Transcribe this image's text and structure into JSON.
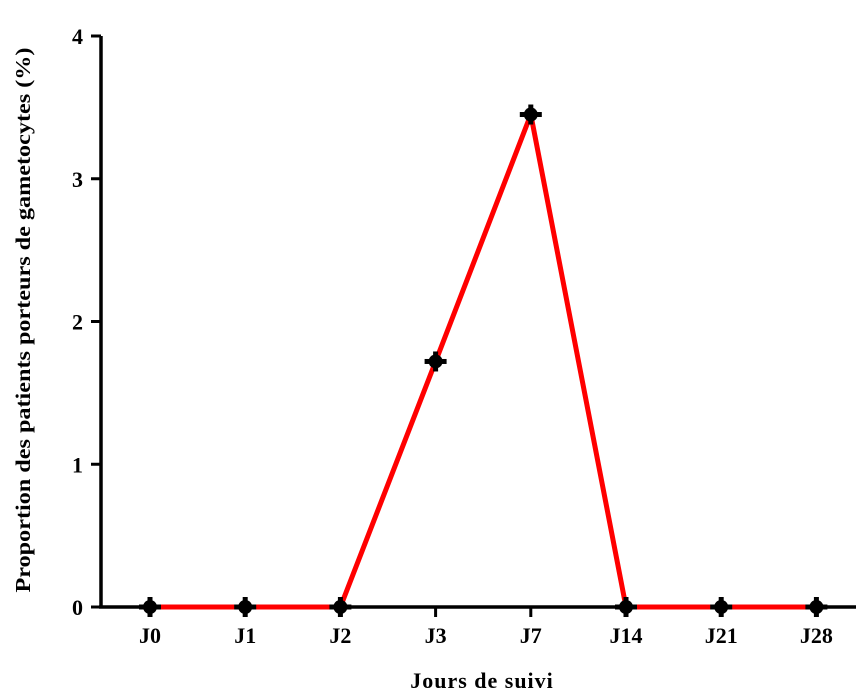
{
  "chart_data": {
    "type": "line",
    "categories": [
      "J0",
      "J1",
      "J2",
      "J3",
      "J7",
      "J14",
      "J21",
      "J28"
    ],
    "series": [
      {
        "values": [
          0,
          0,
          0,
          1.72,
          3.45,
          0,
          0,
          0
        ]
      }
    ],
    "xlabel": "Jours de suivi",
    "ylabel": "Proportion des patients porteurs de gametocytes (%)",
    "ylim": [
      0,
      4
    ],
    "yticks": [
      "0",
      "1",
      "2",
      "3",
      "4"
    ],
    "grid": false,
    "colors": {
      "line": "#ff0000",
      "marker": "#000000",
      "axes": "#000000"
    }
  }
}
